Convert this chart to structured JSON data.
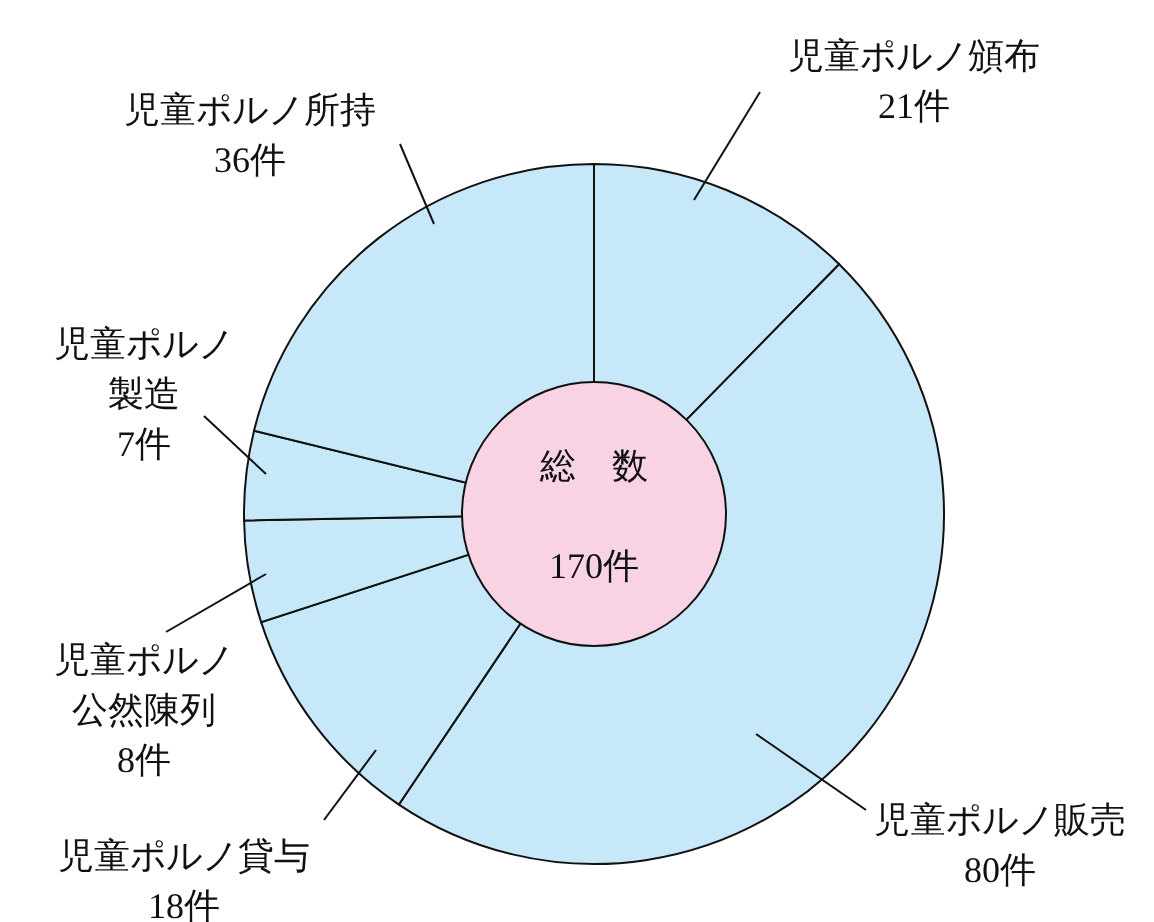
{
  "chart_data": {
    "type": "donut",
    "categories": [
      "児童ポルノ頒布",
      "児童ポルノ販売",
      "児童ポルノ貸与",
      "児童ポルノ公然陳列",
      "児童ポルノ製造",
      "児童ポルノ所持"
    ],
    "values": [
      21,
      80,
      18,
      8,
      7,
      36
    ],
    "colors": [
      "#c7e8f8",
      "#c7e8f8",
      "#c7e8f8",
      "#c7e8f8",
      "#c7e8f8",
      "#c7e8f8"
    ],
    "value_labels": [
      "21件",
      "80件",
      "18件",
      "8件",
      "7件",
      "36件"
    ],
    "annotations": [
      "総　数",
      "170件"
    ]
  }
}
